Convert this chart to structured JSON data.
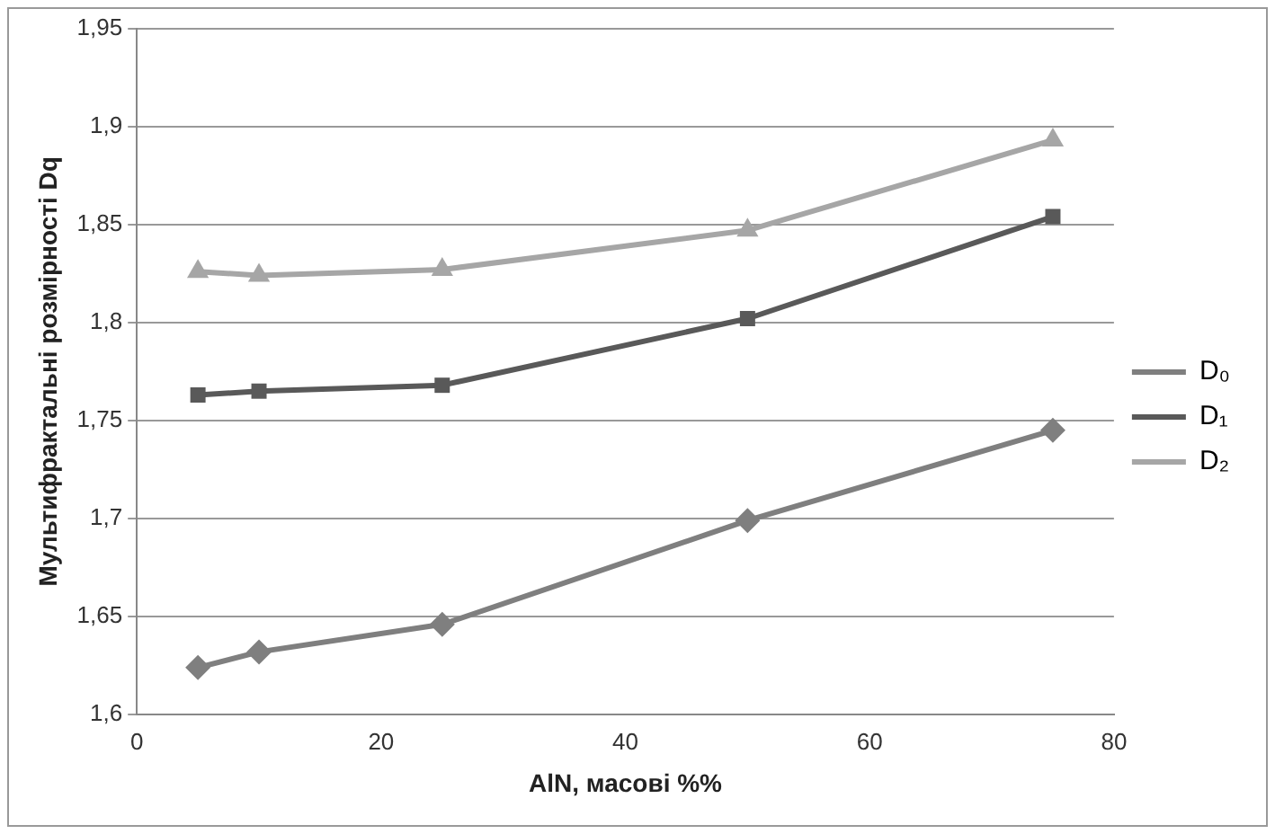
{
  "chart_data": {
    "type": "line",
    "xlabel": "AlN, масові %%",
    "ylabel": "Мультифрактальні розмірності Dq",
    "x": [
      5,
      10,
      25,
      50,
      75
    ],
    "series": [
      {
        "name": "D₀",
        "color": "#7f7f7f",
        "marker": "diamond",
        "values": [
          1.624,
          1.632,
          1.646,
          1.699,
          1.745
        ]
      },
      {
        "name": "D₁",
        "color": "#595959",
        "marker": "square",
        "values": [
          1.763,
          1.765,
          1.768,
          1.802,
          1.854
        ]
      },
      {
        "name": "D₂",
        "color": "#a6a6a6",
        "marker": "triangle",
        "values": [
          1.826,
          1.824,
          1.827,
          1.847,
          1.893
        ]
      }
    ],
    "xlim": [
      0,
      80
    ],
    "xticks": [
      0,
      20,
      40,
      60,
      80
    ],
    "ylim": [
      1.6,
      1.95
    ],
    "yticks": [
      {
        "value": 1.6,
        "label": "1,6"
      },
      {
        "value": 1.65,
        "label": "1,65"
      },
      {
        "value": 1.7,
        "label": "1,7"
      },
      {
        "value": 1.75,
        "label": "1,75"
      },
      {
        "value": 1.8,
        "label": "1,8"
      },
      {
        "value": 1.85,
        "label": "1,85"
      },
      {
        "value": 1.9,
        "label": "1,9"
      },
      {
        "value": 1.95,
        "label": "1,95"
      }
    ],
    "grid": "y",
    "legend": "right",
    "line_style": "solid"
  }
}
